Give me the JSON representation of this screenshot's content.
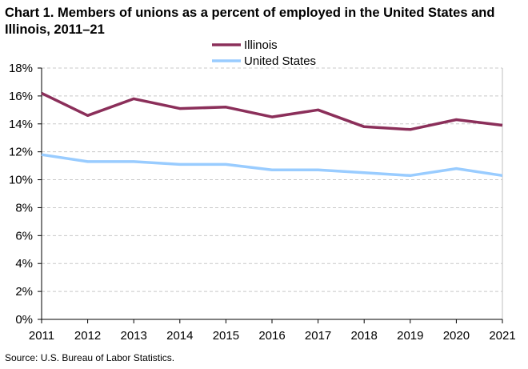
{
  "chart_data": {
    "type": "line",
    "title": "Chart 1. Members of unions as a percent of employed  in the United States and Illinois,  2011–21",
    "xlabel": "",
    "ylabel": "",
    "x": [
      2011,
      2012,
      2013,
      2014,
      2015,
      2016,
      2017,
      2018,
      2019,
      2020,
      2021
    ],
    "x_tick_labels": [
      "2011",
      "2012",
      "2013",
      "2014",
      "2015",
      "2016",
      "2017",
      "2018",
      "2019",
      "2020",
      "2021"
    ],
    "ylim": [
      0,
      18
    ],
    "y_ticks": [
      0,
      2,
      4,
      6,
      8,
      10,
      12,
      14,
      16,
      18
    ],
    "y_tick_labels": [
      "0%",
      "2%",
      "4%",
      "6%",
      "8%",
      "10%",
      "12%",
      "14%",
      "16%",
      "18%"
    ],
    "grid": "horizontal dashed",
    "legend_position": "top-center",
    "series": [
      {
        "name": "Illinois",
        "color": "#8b2f5a",
        "values": [
          16.2,
          14.6,
          15.8,
          15.1,
          15.2,
          14.5,
          15.0,
          13.8,
          13.6,
          14.3,
          13.9
        ]
      },
      {
        "name": "United States",
        "color": "#99ccff",
        "values": [
          11.8,
          11.3,
          11.3,
          11.1,
          11.1,
          10.7,
          10.7,
          10.5,
          10.3,
          10.8,
          10.3
        ]
      }
    ]
  },
  "source": "Source:  U.S. Bureau  of Labor Statistics."
}
